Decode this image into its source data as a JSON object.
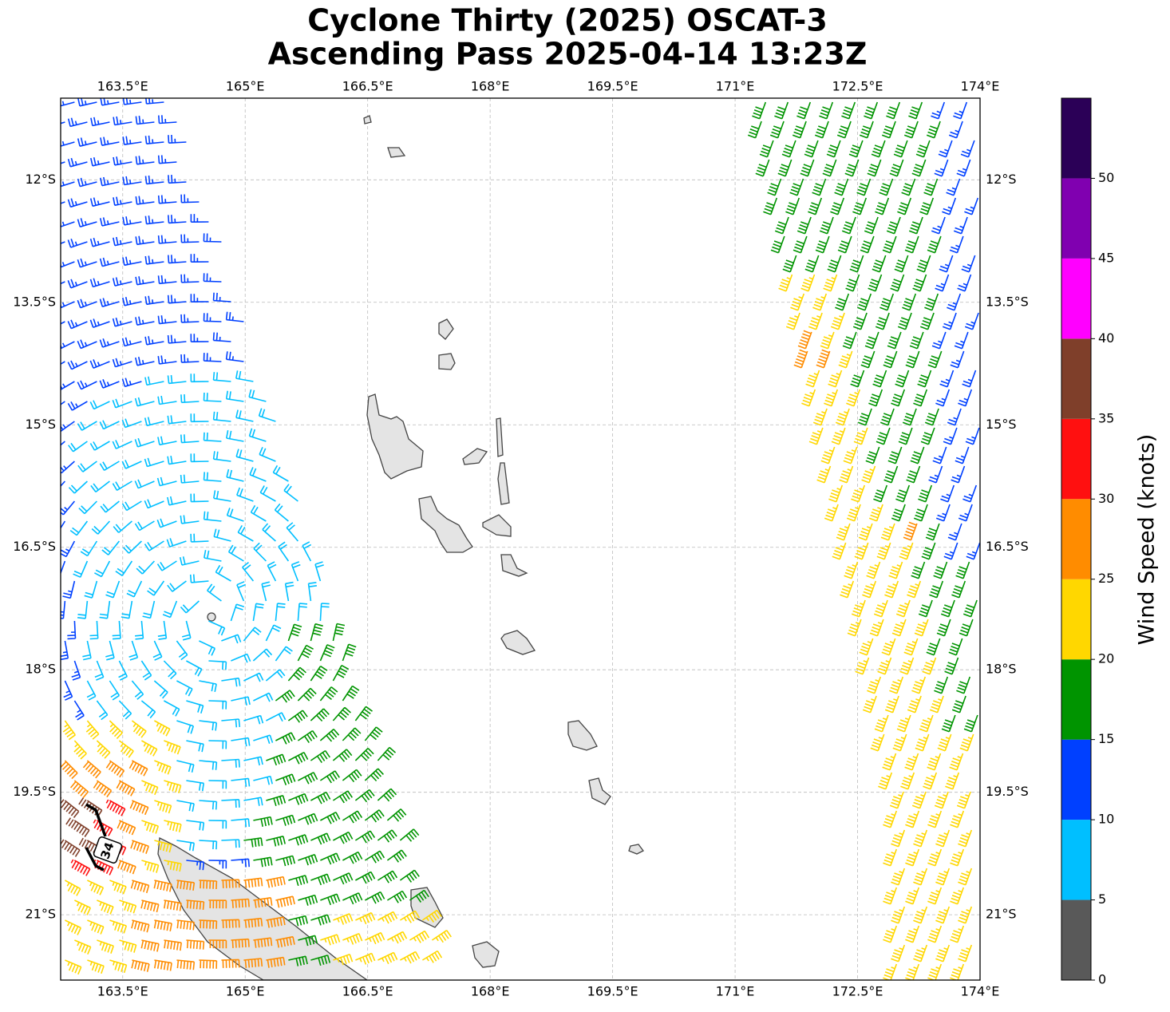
{
  "title": [
    "Cyclone Thirty (2025) OSCAT-3",
    "Ascending Pass 2025-04-14 13:23Z"
  ],
  "map": {
    "xlim": [
      162.74,
      174.0
    ],
    "ylim": [
      -21.8,
      -11.0
    ],
    "xticks": [
      {
        "value": 163.5,
        "label": "163.5°E"
      },
      {
        "value": 165,
        "label": "165°E"
      },
      {
        "value": 166.5,
        "label": "166.5°E"
      },
      {
        "value": 168,
        "label": "168°E"
      },
      {
        "value": 169.5,
        "label": "169.5°E"
      },
      {
        "value": 171,
        "label": "171°E"
      },
      {
        "value": 172.5,
        "label": "172.5°E"
      },
      {
        "value": 174,
        "label": "174°E"
      }
    ],
    "yticks": [
      {
        "value": -12,
        "label": "12°S"
      },
      {
        "value": -13.5,
        "label": "13.5°S"
      },
      {
        "value": -15,
        "label": "15°S"
      },
      {
        "value": -16.5,
        "label": "16.5°S"
      },
      {
        "value": -18,
        "label": "18°S"
      },
      {
        "value": -19.5,
        "label": "19.5°S"
      },
      {
        "value": -21,
        "label": "21°S"
      }
    ],
    "grid": true,
    "annotation": "34"
  },
  "colorbar": {
    "label": "Wind Speed (knots)",
    "levels": [
      0,
      5,
      10,
      15,
      20,
      25,
      30,
      35,
      40,
      45,
      50,
      55
    ],
    "colors": [
      "#595959",
      "#00bfff",
      "#0040ff",
      "#009400",
      "#ffd700",
      "#ff8c00",
      "#ff1010",
      "#7f3f2a",
      "#ff00ff",
      "#8000b0",
      "#2b0057"
    ],
    "ticks": [
      0,
      5,
      10,
      15,
      20,
      25,
      30,
      35,
      40,
      45,
      50
    ]
  }
}
